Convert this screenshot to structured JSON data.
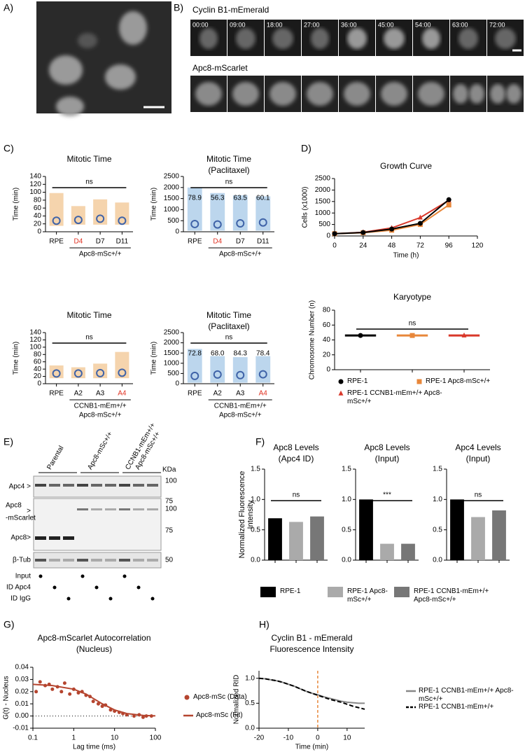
{
  "panel_labels": [
    "A)",
    "B)",
    "C)",
    "D)",
    "E)",
    "F)",
    "G)",
    "H)"
  ],
  "panel_b": {
    "row1_title": "Cyclin B1-mEmerald",
    "row2_title": "Apc8-mScarlet",
    "timestamps": [
      "00:00",
      "09:00",
      "18:00",
      "27:00",
      "36:00",
      "45:00",
      "54:00",
      "63:00",
      "72:00"
    ]
  },
  "panel_e": {
    "lane_groups": [
      "Parental",
      "Apc8-mSc+/+",
      "CCNB1-mEm+/+",
      "Apc8-mSc+/+"
    ],
    "kda": "KDa",
    "row_labels": [
      "Apc4 >",
      "Apc8",
      ">",
      "-mScarlet",
      "Apc8>",
      "β-Tub"
    ],
    "mw": [
      "100",
      "75",
      "100",
      "75",
      "50"
    ],
    "conditions": [
      "Input",
      "ID Apc4",
      "ID IgG"
    ]
  },
  "chart_data": [
    {
      "type": "dot",
      "title": "Mitotic Time",
      "y_label": "Time (min)",
      "categories": [
        "RPE",
        "D4",
        "D7",
        "D11"
      ],
      "label_colors": [
        "#000000",
        "#e03020",
        "#000000",
        "#000000"
      ],
      "values": [
        28,
        30,
        33,
        28
      ],
      "ranges": [
        [
          15,
          98
        ],
        [
          18,
          65
        ],
        [
          18,
          82
        ],
        [
          18,
          74
        ]
      ],
      "color": "#3f63a8",
      "range_color": "#e8a04a",
      "ylim": [
        0,
        140
      ],
      "yticks": [
        0,
        20,
        40,
        60,
        80,
        100,
        120,
        140
      ],
      "group_label": [
        "Apc8-mSc+/+"
      ],
      "group_span": [
        1,
        3
      ],
      "significance": "ns"
    },
    {
      "type": "dot",
      "title": "Mitotic Time",
      "subtitle": "(Paclitaxel)",
      "y_label": "Time (min)",
      "categories": [
        "RPE",
        "D4",
        "D7",
        "D11"
      ],
      "label_colors": [
        "#000000",
        "#e03020",
        "#000000",
        "#000000"
      ],
      "values": [
        350,
        330,
        380,
        420
      ],
      "ranges": [
        [
          50,
          2000
        ],
        [
          50,
          1750
        ],
        [
          50,
          1650
        ],
        [
          50,
          1600
        ]
      ],
      "color": "#3f63a8",
      "range_color": "#6aa3d8",
      "annotations": [
        "78.9",
        "56.3",
        "63.5",
        "60.1"
      ],
      "ylim": [
        0,
        2500
      ],
      "yticks": [
        0,
        500,
        1000,
        1500,
        2000,
        2500
      ],
      "group_label": [
        "Apc8-mSc+/+"
      ],
      "group_span": [
        1,
        3
      ],
      "significance": "ns"
    },
    {
      "type": "dot",
      "title": "Mitotic Time",
      "y_label": "Time (min)",
      "categories": [
        "RPE",
        "A2",
        "A3",
        "A4"
      ],
      "label_colors": [
        "#000000",
        "#000000",
        "#000000",
        "#e03020"
      ],
      "values": [
        28,
        28,
        29,
        30
      ],
      "ranges": [
        [
          15,
          50
        ],
        [
          15,
          45
        ],
        [
          15,
          55
        ],
        [
          15,
          87
        ]
      ],
      "color": "#3f63a8",
      "range_color": "#e8a04a",
      "ylim": [
        0,
        140
      ],
      "yticks": [
        0,
        20,
        40,
        60,
        80,
        100,
        120,
        140
      ],
      "group_label": [
        "CCNB1-mEm+/+",
        "Apc8-mSc+/+"
      ],
      "group_span": [
        1,
        3
      ],
      "significance": "ns"
    },
    {
      "type": "dot",
      "title": "Mitotic Time",
      "subtitle": "(Paclitaxel)",
      "y_label": "Time (min)",
      "categories": [
        "RPE",
        "A2",
        "A3",
        "A4"
      ],
      "label_colors": [
        "#000000",
        "#000000",
        "#000000",
        "#e03020"
      ],
      "values": [
        380,
        450,
        420,
        460
      ],
      "ranges": [
        [
          50,
          1700
        ],
        [
          50,
          1350
        ],
        [
          50,
          1300
        ],
        [
          50,
          1350
        ]
      ],
      "color": "#3f63a8",
      "range_color": "#6aa3d8",
      "annotations": [
        "72.8",
        "68.0",
        "84.3",
        "78.4"
      ],
      "ylim": [
        0,
        2500
      ],
      "yticks": [
        0,
        500,
        1000,
        1500,
        2000,
        2500
      ],
      "group_label": [
        "CCNB1-mEm+/+",
        "Apc8-mSc+/+"
      ],
      "group_span": [
        1,
        3
      ],
      "significance": "ns"
    },
    {
      "type": "line",
      "title": "Growth Curve",
      "y_label": "Cells (x1000)",
      "x_label": "Time (h)",
      "x": [
        0,
        24,
        48,
        72,
        96
      ],
      "xlim": [
        0,
        120
      ],
      "xticks": [
        0,
        24,
        48,
        72,
        96,
        120
      ],
      "ylim": [
        0,
        2500
      ],
      "yticks": [
        0,
        500,
        1000,
        1500,
        2000,
        2500
      ],
      "series": [
        {
          "color": "#d9382a",
          "marker": "triangle",
          "mode": "lines+markers",
          "values": [
            100,
            160,
            350,
            800,
            1550
          ]
        },
        {
          "color": "#e8873a",
          "marker": "square",
          "mode": "lines+markers",
          "values": [
            100,
            140,
            250,
            500,
            1350
          ]
        },
        {
          "color": "#000000",
          "marker": "circle",
          "mode": "lines+markers",
          "values": [
            100,
            150,
            300,
            550,
            1580
          ]
        }
      ]
    },
    {
      "type": "strip",
      "title": "Karyotype",
      "y_label": "Chromosome Number (n)",
      "ylim": [
        0,
        80
      ],
      "yticks": [
        0,
        20,
        40,
        60,
        80
      ],
      "significance": "ns",
      "series": [
        {
          "name": "RPE-1",
          "color": "#000000",
          "marker": "circle",
          "values": [
            46
          ]
        },
        {
          "name": "RPE-1 Apc8-mSc+/+",
          "color": "#e8873a",
          "marker": "square",
          "values": [
            46
          ]
        },
        {
          "name": "RPE-1 CCNB1-mEm+/+ Apc8-mSc+/+",
          "color": "#d9382a",
          "marker": "triangle",
          "values": [
            46
          ]
        }
      ]
    },
    {
      "type": "bar",
      "title": "Apc8 Levels",
      "subtitle": "(Apc4 ID)",
      "y_label": "Normalized Fluorescence Intensity",
      "ylim": [
        0,
        1.5
      ],
      "yticks": [
        {
          "value": 0,
          "label": "0.0"
        },
        0.5,
        {
          "value": 1,
          "label": "1.0"
        },
        1.5
      ],
      "significance": "ns",
      "series": [
        {
          "name": "RPE-1",
          "color": "#000000",
          "values": [
            0.69
          ]
        },
        {
          "name": "RPE-1 Apc8-mSc+/+",
          "color": "#aaaaaa",
          "values": [
            0.63
          ]
        },
        {
          "name": "RPE-1 CCNB1-mEm+/+ Apc8-mSc+/+",
          "color": "#777777",
          "values": [
            0.72
          ]
        }
      ]
    },
    {
      "type": "bar",
      "title": "Apc8 Levels",
      "subtitle": "(Input)",
      "ylim": [
        0,
        1.5
      ],
      "yticks": [
        {
          "value": 0,
          "label": "0.0"
        },
        0.5,
        {
          "value": 1,
          "label": "1.0"
        },
        1.5
      ],
      "significance": "***",
      "series": [
        {
          "color": "#000000",
          "values": [
            1.0
          ]
        },
        {
          "color": "#aaaaaa",
          "values": [
            0.27
          ]
        },
        {
          "color": "#777777",
          "values": [
            0.27
          ]
        }
      ]
    },
    {
      "type": "bar",
      "title": "Apc4 Levels",
      "subtitle": "(Input)",
      "ylim": [
        0,
        1.5
      ],
      "yticks": [
        {
          "value": 0,
          "label": "0.0"
        },
        0.5,
        {
          "value": 1,
          "label": "1.0"
        },
        1.5
      ],
      "significance": "ns",
      "series": [
        {
          "color": "#000000",
          "values": [
            1.0
          ]
        },
        {
          "color": "#aaaaaa",
          "values": [
            0.71
          ]
        },
        {
          "color": "#777777",
          "values": [
            0.82
          ]
        }
      ]
    },
    {
      "type": "scatter",
      "title": "Apc8-mScarlet Autocorrelation",
      "subtitle": "(Nucleus)",
      "y_label": "G(t) - Nucleus",
      "x_label": "Lag time (ms)",
      "log_x": true,
      "xlim": [
        0.1,
        100
      ],
      "xticks": [
        0.1,
        1,
        10,
        100
      ],
      "ylim": [
        -0.01,
        0.04
      ],
      "yticks": [
        -0.01,
        {
          "value": 0,
          "label": "0.00"
        },
        0.01,
        0.02,
        0.03,
        0.04
      ],
      "zero_line": true,
      "series": [
        {
          "name": "Apc8-mSc (Data)",
          "color": "#b5452f",
          "mode": "markers",
          "marker": "circle",
          "x": [
            0.12,
            0.15,
            0.2,
            0.25,
            0.3,
            0.4,
            0.5,
            0.6,
            0.8,
            1,
            1.3,
            1.6,
            2,
            2.5,
            3,
            4,
            5,
            6,
            8,
            10,
            13,
            16,
            20,
            30,
            40,
            50,
            60,
            80
          ],
          "values": [
            0.02,
            0.028,
            0.025,
            0.026,
            0.022,
            0.024,
            0.02,
            0.027,
            0.018,
            0.022,
            0.019,
            0.02,
            0.017,
            0.016,
            0.012,
            0.01,
            0.008,
            0.009,
            0.005,
            0.004,
            0.003,
            0.002,
            0.001,
            0.0,
            0.001,
            -0.001,
            0.0,
            0.0
          ]
        },
        {
          "name": "Apc8-mSc (Fit)",
          "color": "#b5452f",
          "mode": "lines",
          "x": [
            0.1,
            0.3,
            1,
            2,
            5,
            10,
            20,
            50,
            100
          ],
          "values": [
            0.026,
            0.025,
            0.022,
            0.018,
            0.01,
            0.005,
            0.002,
            0.0005,
            0.0001
          ]
        }
      ]
    },
    {
      "type": "line",
      "title": "Cyclin B1 - mEmerald",
      "subtitle": "Fluorescence Intensity",
      "y_label": "Normalized RID",
      "x_label": "Time (min)",
      "x": [
        -20,
        -18,
        -16,
        -14,
        -12,
        -10,
        -8,
        -6,
        -4,
        -2,
        0,
        2,
        4,
        6,
        8,
        10,
        12,
        14,
        16
      ],
      "xlim": [
        -20,
        16
      ],
      "xticks": [
        -20,
        -10,
        0,
        10
      ],
      "ylim": [
        0,
        1.15
      ],
      "yticks": [
        {
          "value": 0,
          "label": "0.0"
        },
        0.5,
        {
          "value": 1,
          "label": "1.0"
        }
      ],
      "vline": 0,
      "vline_color": "#e8873a",
      "series": [
        {
          "name": "RPE-1 CCNB1-mEm+/+ Apc8-mSc+/+",
          "color": "#888888",
          "values": [
            1.0,
            0.99,
            0.97,
            0.95,
            0.92,
            0.88,
            0.84,
            0.79,
            0.74,
            0.7,
            0.67,
            0.63,
            0.6,
            0.57,
            0.54,
            0.52,
            0.51,
            0.5,
            0.5
          ]
        },
        {
          "name": "RPE-1 CCNB1-mEm+/+",
          "color": "#000000",
          "dash": true,
          "values": [
            1.0,
            0.99,
            0.97,
            0.95,
            0.92,
            0.88,
            0.84,
            0.79,
            0.74,
            0.7,
            0.66,
            0.62,
            0.58,
            0.55,
            0.52,
            0.48,
            0.44,
            0.41,
            0.38
          ]
        }
      ]
    }
  ]
}
